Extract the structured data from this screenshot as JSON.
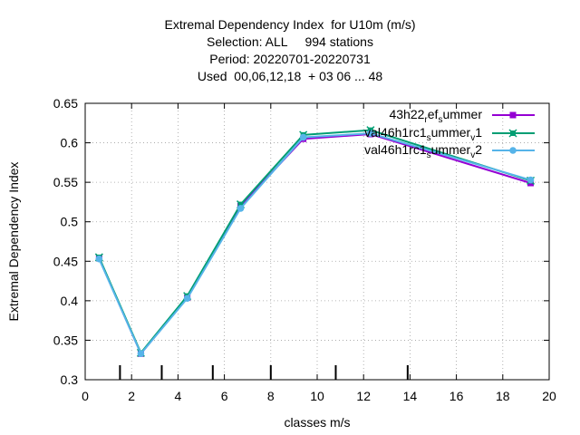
{
  "chart_data": {
    "type": "line",
    "title_lines": [
      "Extremal Dependency Index  for U10m (m/s)",
      "Selection: ALL     994 stations",
      "Period: 20220701-20220731",
      "Used  00,06,12,18  + 03 06 ... 48"
    ],
    "xlabel": "classes m/s",
    "ylabel": "Extremal Dependency Index",
    "xlim": [
      0,
      20
    ],
    "ylim": [
      0.3,
      0.65
    ],
    "xticks": [
      "0",
      "2",
      "4",
      "6",
      "8",
      "10",
      "12",
      "14",
      "16",
      "18",
      "20"
    ],
    "yticks": [
      "0.3",
      "0.35",
      "0.4",
      "0.45",
      "0.5",
      "0.55",
      "0.6",
      "0.65"
    ],
    "grid": true,
    "legend_position": "top-right",
    "class_boundaries": [
      1.5,
      3.3,
      5.5,
      8.0,
      10.8,
      13.9
    ],
    "series": [
      {
        "name": "43h22_ref_summer",
        "legend_main": [
          "43h22",
          "ef",
          "ummer"
        ],
        "legend_sub": [
          "r",
          "s"
        ],
        "color": "#9400d3",
        "marker": "square",
        "x": [
          0.6,
          2.4,
          4.4,
          6.7,
          9.4,
          12.3,
          19.2
        ],
        "y": [
          0.454,
          0.333,
          0.404,
          0.52,
          0.605,
          0.611,
          0.549
        ]
      },
      {
        "name": "val46h1rc1_summer_v1",
        "legend_main": [
          "val46h1rc1",
          "ummer",
          "1"
        ],
        "legend_sub": [
          "s",
          "v"
        ],
        "color": "#009e73",
        "marker": "cross",
        "x": [
          0.6,
          2.4,
          4.4,
          6.7,
          9.4,
          12.3,
          19.2
        ],
        "y": [
          0.455,
          0.334,
          0.406,
          0.522,
          0.61,
          0.616,
          0.552
        ]
      },
      {
        "name": "val46h1rc1_summer_v2",
        "legend_main": [
          "val46h1rc1",
          "ummer",
          "2"
        ],
        "legend_sub": [
          "s",
          "v"
        ],
        "color": "#56b4e9",
        "marker": "circle",
        "x": [
          0.6,
          2.4,
          4.4,
          6.7,
          9.4,
          12.3,
          19.2
        ],
        "y": [
          0.453,
          0.333,
          0.403,
          0.517,
          0.607,
          0.612,
          0.553
        ]
      }
    ]
  }
}
